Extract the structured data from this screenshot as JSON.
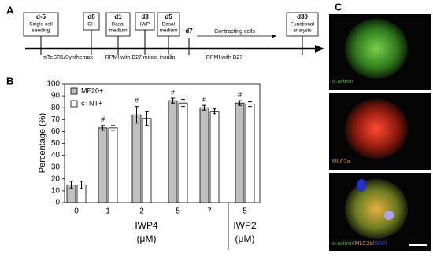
{
  "panel_a": {
    "letter": "A",
    "steps": [
      {
        "day": "d-5",
        "lines": [
          "Single cell",
          "seeding"
        ]
      },
      {
        "day": "d0",
        "lines": [
          "CH"
        ]
      },
      {
        "day": "d1",
        "lines": [
          "Basal",
          "medium"
        ]
      },
      {
        "day": "d3",
        "lines": [
          "IWP"
        ]
      },
      {
        "day": "d5",
        "lines": [
          "Basal",
          "medium"
        ]
      },
      {
        "day": "d30",
        "lines": [
          "Functional",
          "analysis"
        ]
      }
    ],
    "d7": "d7",
    "arrow_label": "Contracting cells",
    "media": [
      "mTeSR1/Synthemax",
      "RPMI with B27 minus insulin",
      "RPMI with B27"
    ]
  },
  "chart_data": {
    "type": "bar",
    "letter": "B",
    "y_label": "Percentage (%)",
    "categories": [
      "0",
      "1",
      "2",
      "5",
      "7",
      "5"
    ],
    "groups": [
      {
        "name": "IWP4",
        "unit": "(μM)"
      },
      {
        "name": "IWP2",
        "unit": "(μM)"
      }
    ],
    "series": [
      {
        "name": "MF20+",
        "color": "#c0c0c0",
        "values": [
          15,
          63,
          74,
          86,
          80,
          84
        ],
        "errors": [
          3,
          2,
          7,
          2,
          2,
          2
        ]
      },
      {
        "name": "cTNT+",
        "color": "#ffffff",
        "values": [
          15,
          63,
          71,
          84,
          77,
          83
        ],
        "errors": [
          3,
          2,
          6,
          3,
          2,
          2
        ]
      }
    ],
    "significance_marks": [
      null,
      "#",
      "#",
      "#",
      "#",
      "#"
    ],
    "ylim": [
      0,
      100
    ],
    "yticks": [
      0,
      10,
      20,
      30,
      40,
      50,
      60,
      70,
      80,
      90,
      100
    ]
  },
  "panel_c": {
    "letter": "C",
    "captions": [
      [
        "α-actinin"
      ],
      [
        "MLC2a"
      ],
      [
        "α-actinin/",
        "MLC2a/",
        "DAPI"
      ]
    ]
  }
}
